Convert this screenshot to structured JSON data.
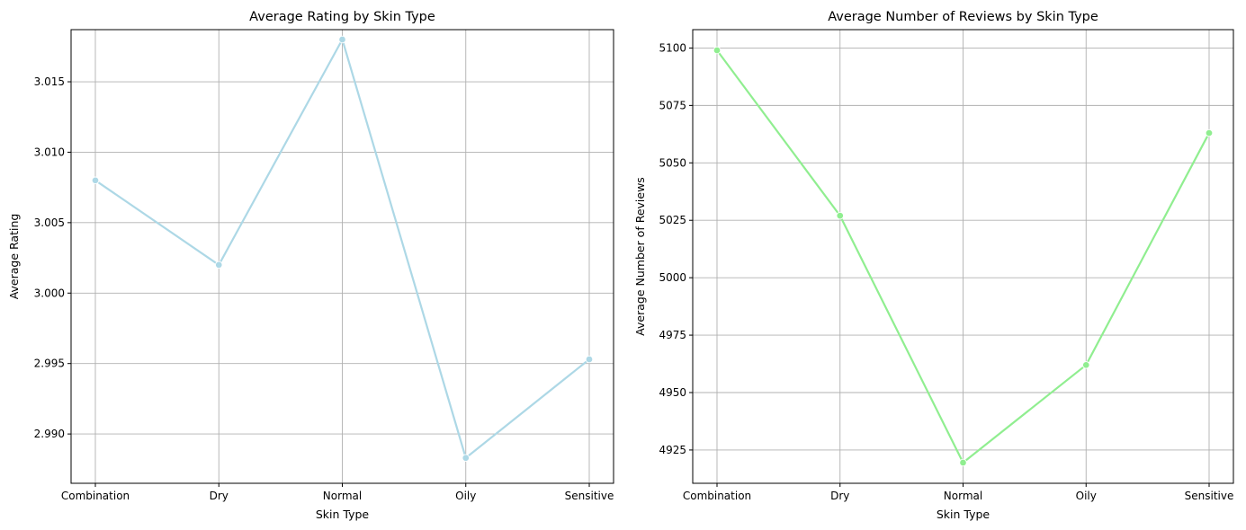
{
  "chart_data": [
    {
      "type": "line",
      "title": "Average Rating by Skin Type",
      "xlabel": "Skin Type",
      "ylabel": "Average Rating",
      "categories": [
        "Combination",
        "Dry",
        "Normal",
        "Oily",
        "Sensitive"
      ],
      "values": [
        3.008,
        3.002,
        3.018,
        2.9883,
        2.9953
      ],
      "ylim": [
        2.9865,
        3.0187
      ],
      "yticks": [
        2.99,
        2.995,
        3.0,
        3.005,
        3.01,
        3.015
      ],
      "ytick_labels": [
        "2.990",
        "2.995",
        "3.000",
        "3.005",
        "3.010",
        "3.015"
      ],
      "color": "#add8e6",
      "grid": true,
      "marker": "circle"
    },
    {
      "type": "line",
      "title": "Average Number of Reviews by Skin Type",
      "xlabel": "Skin Type",
      "ylabel": "Average Number of Reviews",
      "categories": [
        "Combination",
        "Dry",
        "Normal",
        "Oily",
        "Sensitive"
      ],
      "values": [
        5099,
        5027,
        4919.5,
        4962,
        5063
      ],
      "ylim": [
        4910.5,
        5108
      ],
      "yticks": [
        4925,
        4950,
        4975,
        5000,
        5025,
        5050,
        5075,
        5100
      ],
      "ytick_labels": [
        "4925",
        "4950",
        "4975",
        "5000",
        "5025",
        "5050",
        "5075",
        "5100"
      ],
      "color": "#90ee90",
      "grid": true,
      "marker": "circle"
    }
  ]
}
